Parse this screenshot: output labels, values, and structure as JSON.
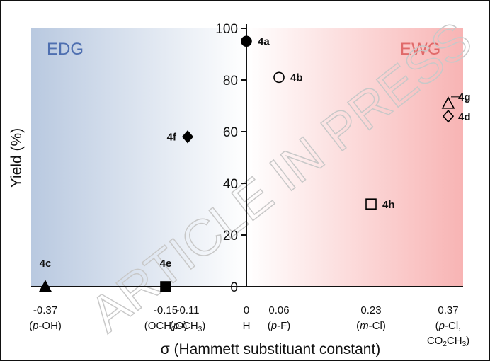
{
  "colors": {
    "edg_fill": "#b9c9e0",
    "ewg_fill": "#f8b4b4",
    "edg_text": "#4e6fb0",
    "ewg_text": "#e06a6a",
    "axis": "#111111"
  },
  "watermark": "ARTICLE IN PRESS",
  "chart_data": {
    "type": "scatter",
    "xlabel": "σ (Hammett substituant constant)",
    "ylabel": "Yield (%)",
    "ylim": [
      0,
      100
    ],
    "yticks": [
      "0",
      "20",
      "40",
      "60",
      "80",
      "100"
    ],
    "grid": false,
    "regions": [
      {
        "label": "EDG",
        "side": "left"
      },
      {
        "label": "EWG",
        "side": "right"
      }
    ],
    "categories": [
      {
        "sigma": "-0.37",
        "sub_parts": [
          [
            "(",
            "n"
          ],
          [
            "p",
            "i"
          ],
          [
            "-OH)",
            "n"
          ]
        ]
      },
      {
        "sigma": "-0.15",
        "sub_parts": [
          [
            "(OCH",
            "n"
          ],
          [
            "2",
            "sub"
          ],
          [
            "O)",
            "n"
          ]
        ]
      },
      {
        "sigma": "-0.11",
        "sub_parts": [
          [
            "(",
            "n"
          ],
          [
            "p",
            "i"
          ],
          [
            "-CH",
            "n"
          ],
          [
            "3",
            "sub"
          ],
          [
            ")",
            "n"
          ]
        ]
      },
      {
        "sigma": "0",
        "sub_parts": [
          [
            "H",
            "n"
          ]
        ]
      },
      {
        "sigma": "0.06",
        "sub_parts": [
          [
            "(",
            "n"
          ],
          [
            "p",
            "i"
          ],
          [
            "-F)",
            "n"
          ]
        ]
      },
      {
        "sigma": "0.23",
        "sub_parts": [
          [
            "(",
            "n"
          ],
          [
            "m",
            "i"
          ],
          [
            "-Cl)",
            "n"
          ]
        ]
      },
      {
        "sigma": "0.37",
        "sub_parts": [
          [
            "(",
            "n"
          ],
          [
            "p",
            "i"
          ],
          [
            "-Cl,",
            "n"
          ]
        ],
        "sub2_parts": [
          [
            "CO",
            "n"
          ],
          [
            "2",
            "sub"
          ],
          [
            "CH",
            "n"
          ],
          [
            "3",
            "sub"
          ],
          [
            ")",
            "n"
          ]
        ]
      }
    ],
    "points": [
      {
        "label": "4a",
        "x": 0,
        "y": 95,
        "marker": "circle",
        "filled": true
      },
      {
        "label": "4b",
        "x": 0.06,
        "y": 81,
        "marker": "circle",
        "filled": false
      },
      {
        "label": "4c",
        "x": -0.37,
        "y": 0,
        "marker": "triangle",
        "filled": true
      },
      {
        "label": "4d",
        "x": 0.37,
        "y": 66,
        "marker": "diamond",
        "filled": false
      },
      {
        "label": "4e",
        "x": -0.15,
        "y": 0,
        "marker": "square",
        "filled": true
      },
      {
        "label": "4f",
        "x": -0.11,
        "y": 58,
        "marker": "diamond",
        "filled": true
      },
      {
        "label": "4g",
        "x": 0.37,
        "y": 71,
        "marker": "triangle",
        "filled": false
      },
      {
        "label": "4h",
        "x": 0.23,
        "y": 32,
        "marker": "square",
        "filled": false
      }
    ]
  }
}
